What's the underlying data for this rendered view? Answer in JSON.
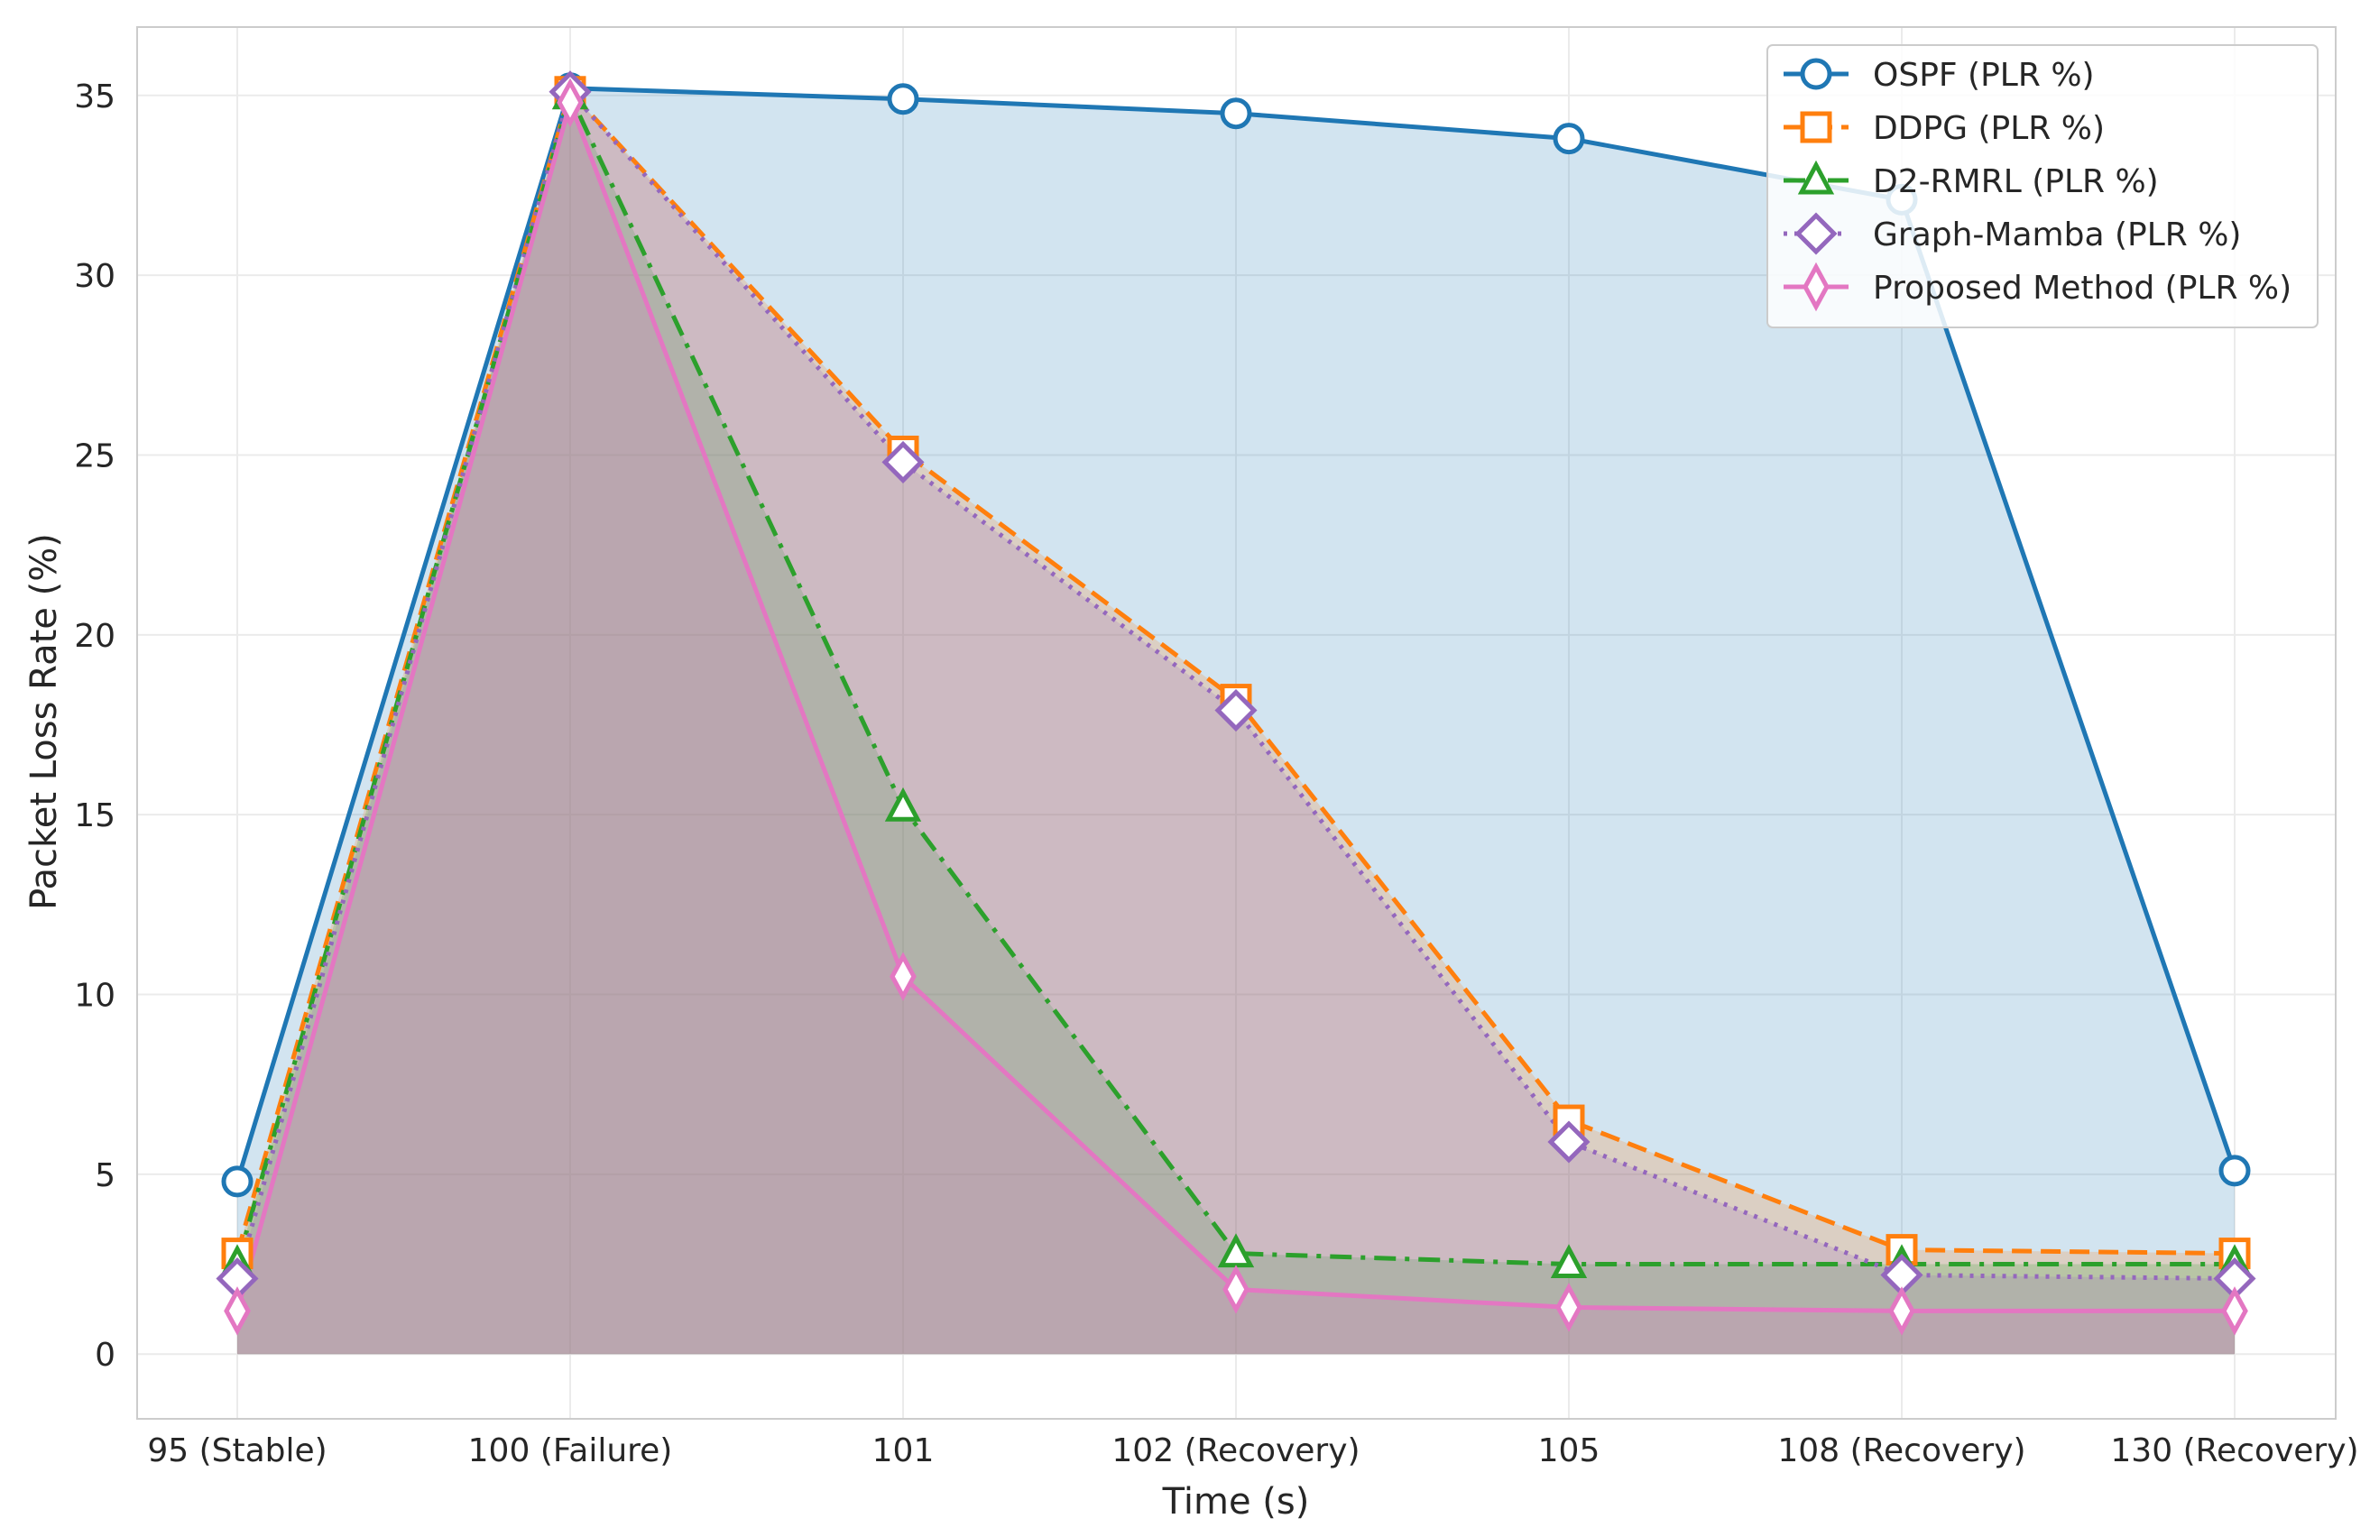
{
  "chart_data": {
    "type": "area",
    "title": "",
    "xlabel": "Time (s)",
    "ylabel": "Packet Loss Rate (%)",
    "categories": [
      "95 (Stable)",
      "100 (Failure)",
      "101",
      "102 (Recovery)",
      "105",
      "108 (Recovery)",
      "130 (Recovery)"
    ],
    "ylim": [
      -1.8,
      36.9
    ],
    "yticks": [
      0,
      5,
      10,
      15,
      20,
      25,
      30,
      35
    ],
    "grid": true,
    "legend_position": "top-right",
    "series": [
      {
        "name": "OSPF (PLR %)",
        "values": [
          4.8,
          35.2,
          34.9,
          34.5,
          33.8,
          32.1,
          5.1
        ],
        "color": "#1f77b4",
        "marker": "circle",
        "dash": "solid"
      },
      {
        "name": "DDPG (PLR %)",
        "values": [
          2.8,
          35.1,
          25.1,
          18.2,
          6.5,
          2.9,
          2.8
        ],
        "color": "#ff7f0e",
        "marker": "square",
        "dash": "dashed"
      },
      {
        "name": "D2-RMRL (PLR %)",
        "values": [
          2.5,
          35.0,
          15.2,
          2.8,
          2.5,
          2.5,
          2.5
        ],
        "color": "#2ca02c",
        "marker": "triangle",
        "dash": "dashdot"
      },
      {
        "name": "Graph-Mamba (PLR %)",
        "values": [
          2.1,
          35.1,
          24.8,
          17.9,
          5.9,
          2.2,
          2.1
        ],
        "color": "#9467bd",
        "marker": "diamond",
        "dash": "dotted"
      },
      {
        "name": "Proposed Method (PLR %)",
        "values": [
          1.2,
          34.8,
          10.5,
          1.8,
          1.3,
          1.2,
          1.2
        ],
        "color": "#e377c2",
        "marker": "thin-diamond",
        "dash": "solid"
      }
    ]
  }
}
